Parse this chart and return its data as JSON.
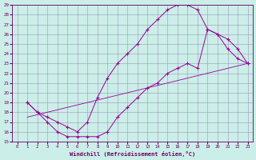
{
  "xlabel": "Windchill (Refroidissement éolien,°C)",
  "background_color": "#cceee8",
  "grid_color": "#9999bb",
  "line_color": "#990099",
  "xlim": [
    -0.5,
    23.5
  ],
  "ylim": [
    15,
    29
  ],
  "xticks": [
    0,
    1,
    2,
    3,
    4,
    5,
    6,
    7,
    8,
    9,
    10,
    11,
    12,
    13,
    14,
    15,
    16,
    17,
    18,
    19,
    20,
    21,
    22,
    23
  ],
  "yticks": [
    15,
    16,
    17,
    18,
    19,
    20,
    21,
    22,
    23,
    24,
    25,
    26,
    27,
    28,
    29
  ],
  "series_upper": {
    "x": [
      1,
      2,
      3,
      4,
      5,
      6,
      7,
      8,
      9,
      10,
      11,
      12,
      13,
      14,
      15,
      16,
      17,
      18,
      19,
      20,
      21,
      22,
      23
    ],
    "y": [
      19.0,
      18.0,
      17.5,
      17.0,
      16.5,
      16.0,
      17.0,
      19.5,
      21.5,
      23.0,
      24.0,
      25.0,
      26.5,
      27.5,
      28.5,
      29.0,
      29.0,
      28.5,
      26.5,
      26.0,
      25.5,
      24.5,
      23.0
    ]
  },
  "series_lower": {
    "x": [
      1,
      2,
      3,
      4,
      5,
      6,
      7,
      8,
      9,
      10,
      11,
      12,
      13,
      14,
      15,
      16,
      17,
      18,
      19,
      20,
      21,
      22,
      23
    ],
    "y": [
      19.0,
      18.0,
      17.0,
      16.0,
      15.5,
      15.5,
      15.5,
      15.5,
      16.0,
      17.5,
      18.5,
      19.5,
      20.5,
      21.0,
      22.0,
      22.5,
      23.0,
      22.5,
      26.5,
      26.0,
      24.5,
      23.5,
      23.0
    ]
  },
  "series_diag": {
    "x": [
      1,
      23
    ],
    "y": [
      17.5,
      23.0
    ]
  }
}
